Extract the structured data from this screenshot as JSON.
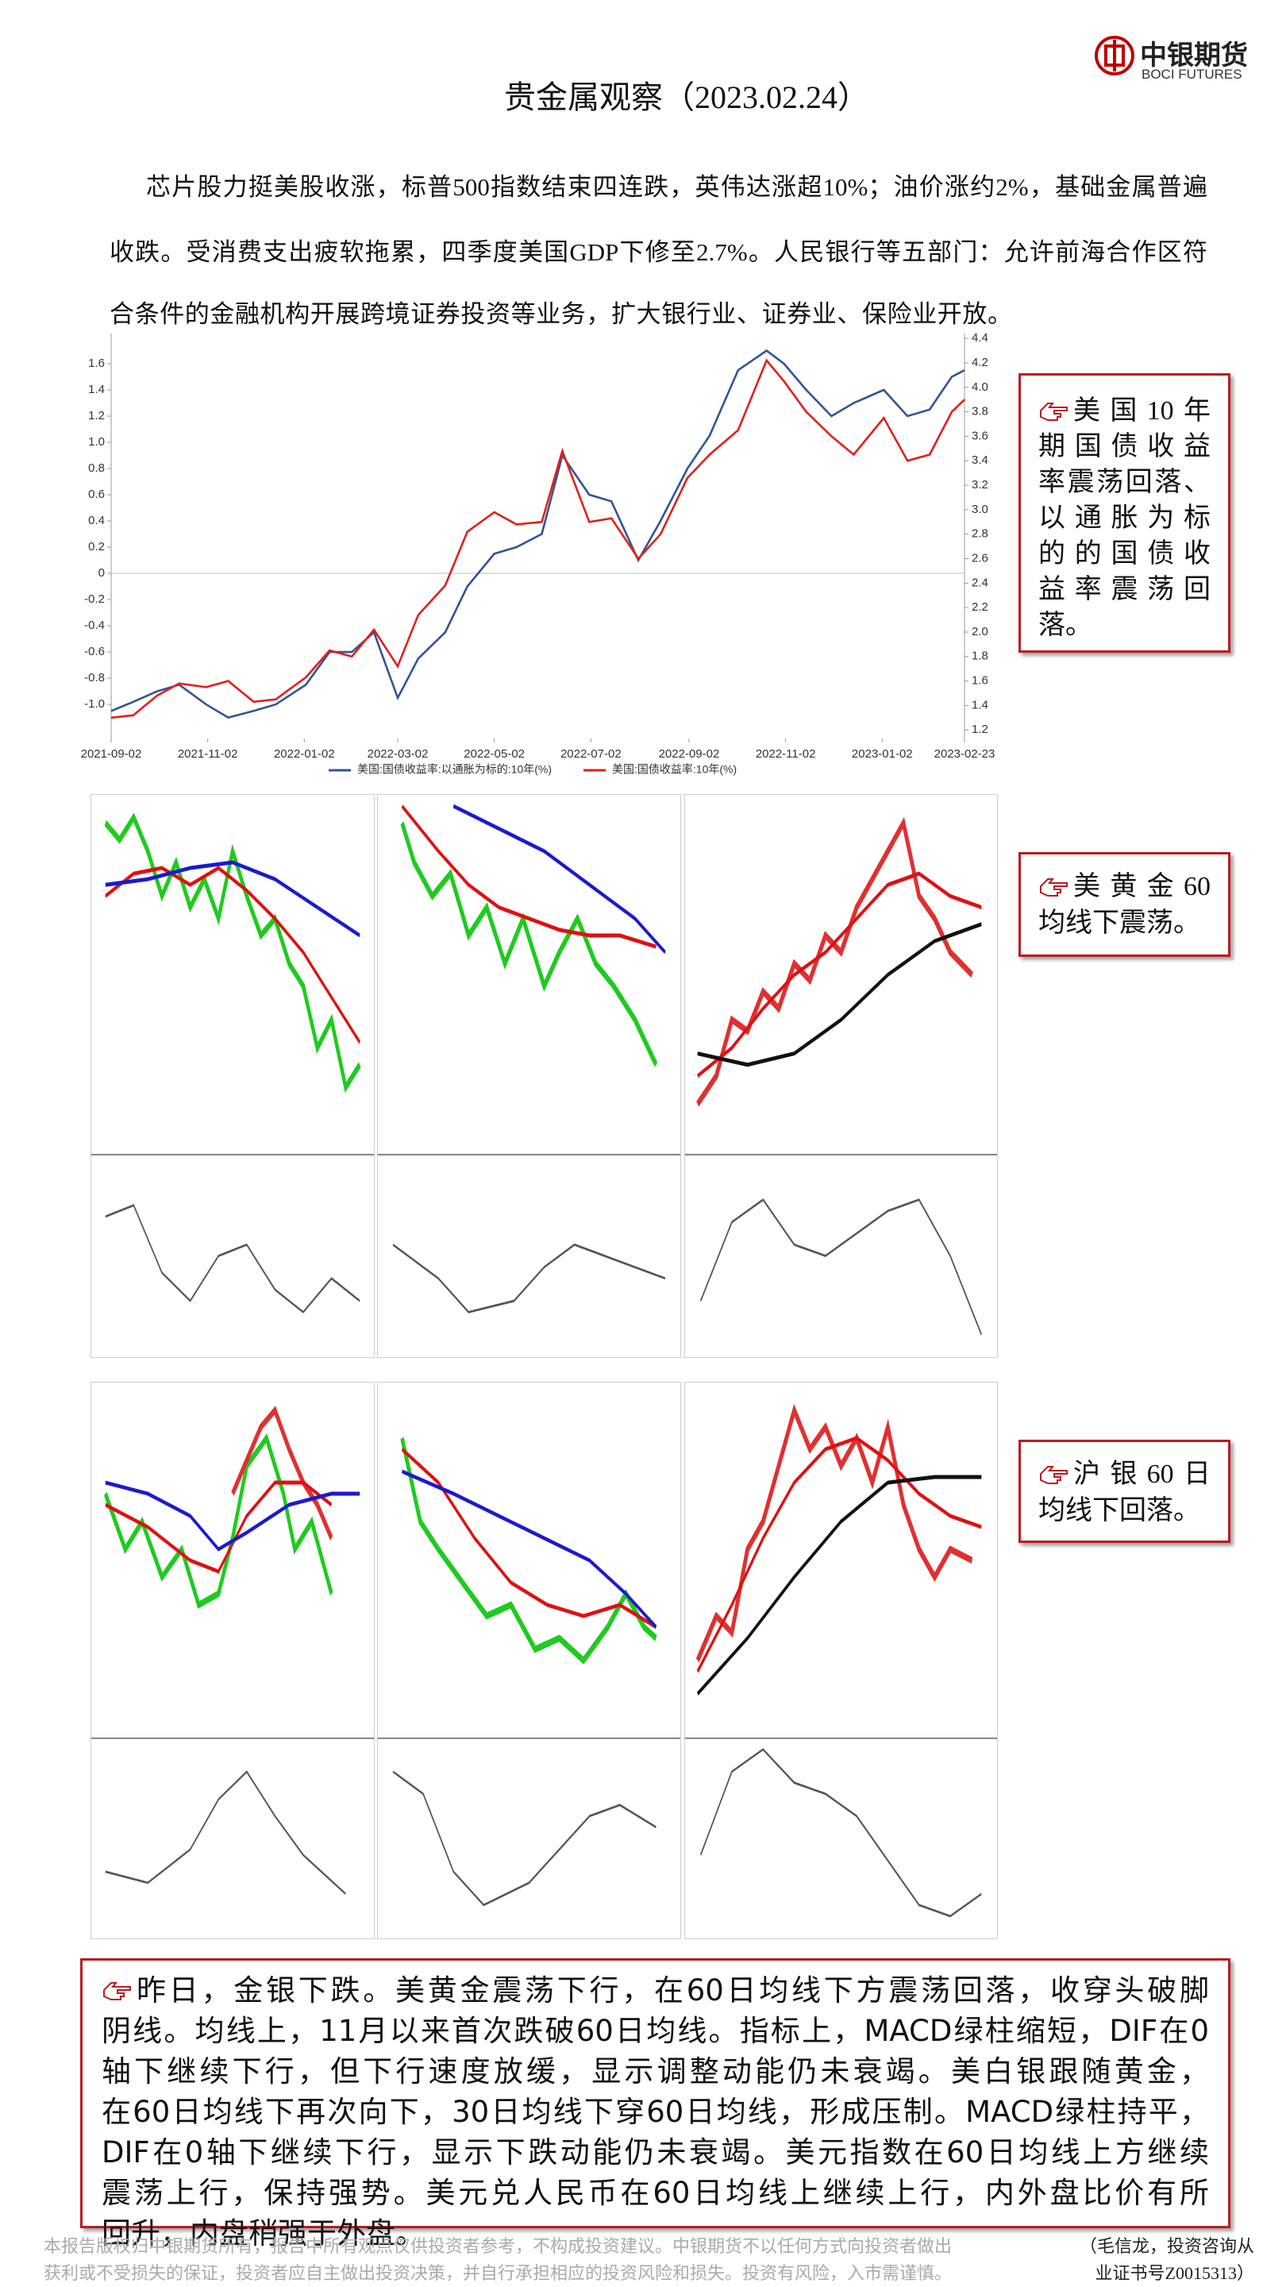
{
  "header": {
    "logo_cn": "中银期货",
    "logo_en": "BOCI FUTURES",
    "title": "贵金属观察（2023.02.24）"
  },
  "intro": {
    "lines": [
      "芯片股力挺美股收涨，标普500指数结束四连跌，英伟达涨超10%；油价涨约2%，基础金属普遍",
      "收跌。受消费支出疲软拖累，四季度美国GDP下修至2.7%。人民银行等五部门：允许前海合作区符",
      "合条件的金融机构开展跨境证券投资等业务，扩大银行业、证券业、保险业开放。"
    ]
  },
  "chart_data": {
    "type": "line",
    "x": [
      "2021-09-02",
      "2021-09-16",
      "2021-10-01",
      "2021-10-15",
      "2021-11-01",
      "2021-11-15",
      "2021-12-01",
      "2021-12-15",
      "2022-01-03",
      "2022-01-18",
      "2022-02-01",
      "2022-02-15",
      "2022-03-02",
      "2022-03-15",
      "2022-04-01",
      "2022-04-15",
      "2022-05-02",
      "2022-05-16",
      "2022-06-01",
      "2022-06-14",
      "2022-07-01",
      "2022-07-15",
      "2022-08-01",
      "2022-08-15",
      "2022-09-01",
      "2022-09-15",
      "2022-10-03",
      "2022-10-21",
      "2022-11-01",
      "2022-11-15",
      "2022-12-01",
      "2022-12-15",
      "2023-01-03",
      "2023-01-18",
      "2023-02-01",
      "2023-02-15",
      "2023-02-23"
    ],
    "xlim": [
      "2021-09-02",
      "2023-02-23"
    ],
    "xticks": [
      "2021-09-02",
      "2021-11-02",
      "2022-01-02",
      "2022-03-02",
      "2022-05-02",
      "2022-07-02",
      "2022-09-02",
      "2022-11-02",
      "2023-01-02",
      "2023-02-23"
    ],
    "ylim": [
      -1.26,
      1.83
    ],
    "yticks": [
      {
        "value": -1.0,
        "label": "-1.0"
      },
      -0.8,
      -0.6,
      -0.4,
      -0.2,
      0,
      0.2,
      0.4,
      0.6,
      0.8,
      {
        "value": 1.0,
        "label": "1.0"
      },
      1.2,
      1.4,
      1.6
    ],
    "y2lim": [
      1.13,
      4.44
    ],
    "y2ticks": [
      1.2,
      1.4,
      1.6,
      1.8,
      {
        "value": 2.0,
        "label": "2.0"
      },
      2.2,
      2.4,
      2.6,
      2.8,
      {
        "value": 3.0,
        "label": "3.0"
      },
      3.2,
      3.4,
      3.6,
      3.8,
      {
        "value": 4.0,
        "label": "4.0"
      },
      4.2,
      4.4
    ],
    "series": [
      {
        "name": "美国:国债收益率:以通胀为标的:10年(%)",
        "color": "#2f5597",
        "values": [
          -1.05,
          -0.98,
          -0.9,
          -0.85,
          -1.0,
          -1.1,
          -1.05,
          -1.0,
          -0.85,
          -0.6,
          -0.6,
          -0.45,
          -0.95,
          -0.65,
          -0.45,
          -0.1,
          0.15,
          0.2,
          0.3,
          0.9,
          0.6,
          0.55,
          0.1,
          0.4,
          0.8,
          1.05,
          1.55,
          1.7,
          1.6,
          1.4,
          1.2,
          1.3,
          1.4,
          1.2,
          1.25,
          1.5,
          1.55
        ]
      },
      {
        "name": "美国:国债收益率:10年(%)",
        "color": "#e0201b",
        "axis": "y2",
        "values": [
          1.3,
          1.32,
          1.48,
          1.58,
          1.55,
          1.6,
          1.43,
          1.45,
          1.63,
          1.85,
          1.8,
          2.02,
          1.72,
          2.14,
          2.38,
          2.82,
          2.98,
          2.88,
          2.9,
          3.48,
          2.9,
          2.93,
          2.6,
          2.8,
          3.26,
          3.45,
          3.65,
          4.22,
          4.05,
          3.8,
          3.6,
          3.45,
          3.75,
          3.4,
          3.45,
          3.8,
          3.9
        ]
      }
    ]
  },
  "callouts": [
    {
      "lines": [
        "美国10年",
        "期国债收益",
        "率震荡回落、",
        "以通胀为标",
        "的的国债收",
        "益率震荡回",
        "落。"
      ]
    },
    {
      "lines": [
        "美黄金60",
        "均线下震荡。"
      ]
    },
    {
      "lines": [
        "沪银60日",
        "均线下回落。"
      ]
    }
  ],
  "summary": {
    "lines": [
      "昨日，金银下跌。美黄金震荡下行，在60日均线下方震荡回落，收穿头破脚",
      "阴线。均线上，11月以来首次跌破60日均线。指标上，MACD绿柱缩短，DIF在0",
      "轴下继续下行，但下行速度放缓，显示调整动能仍未衰竭。美白银跟随黄金，",
      "在60日均线下再次向下，30日均线下穿60日均线，形成压制。MACD绿柱持平，",
      "DIF在0轴下继续下行，显示下跌动能仍未衰竭。美元指数在60日均线上方继续",
      "震荡上行，保持强势。美元兑人民币在60日均线上继续上行，内外盘比价有所",
      "回升，内盘稍强于外盘。"
    ]
  },
  "footer": {
    "disclaimer": [
      "本报告版权归中银期货所有，报告中所有观点仅供投资者参考，不构成投资建议。中银期货不以任何方式向投资者做出",
      "获利或不受损失的保证，投资者应自主做出投资决策，并自行承担相应的投资风险和损失。投资有风险，入市需谨慎。"
    ],
    "author": [
      "（毛信龙，投资咨询从",
      "业证书号Z0015313）"
    ]
  }
}
